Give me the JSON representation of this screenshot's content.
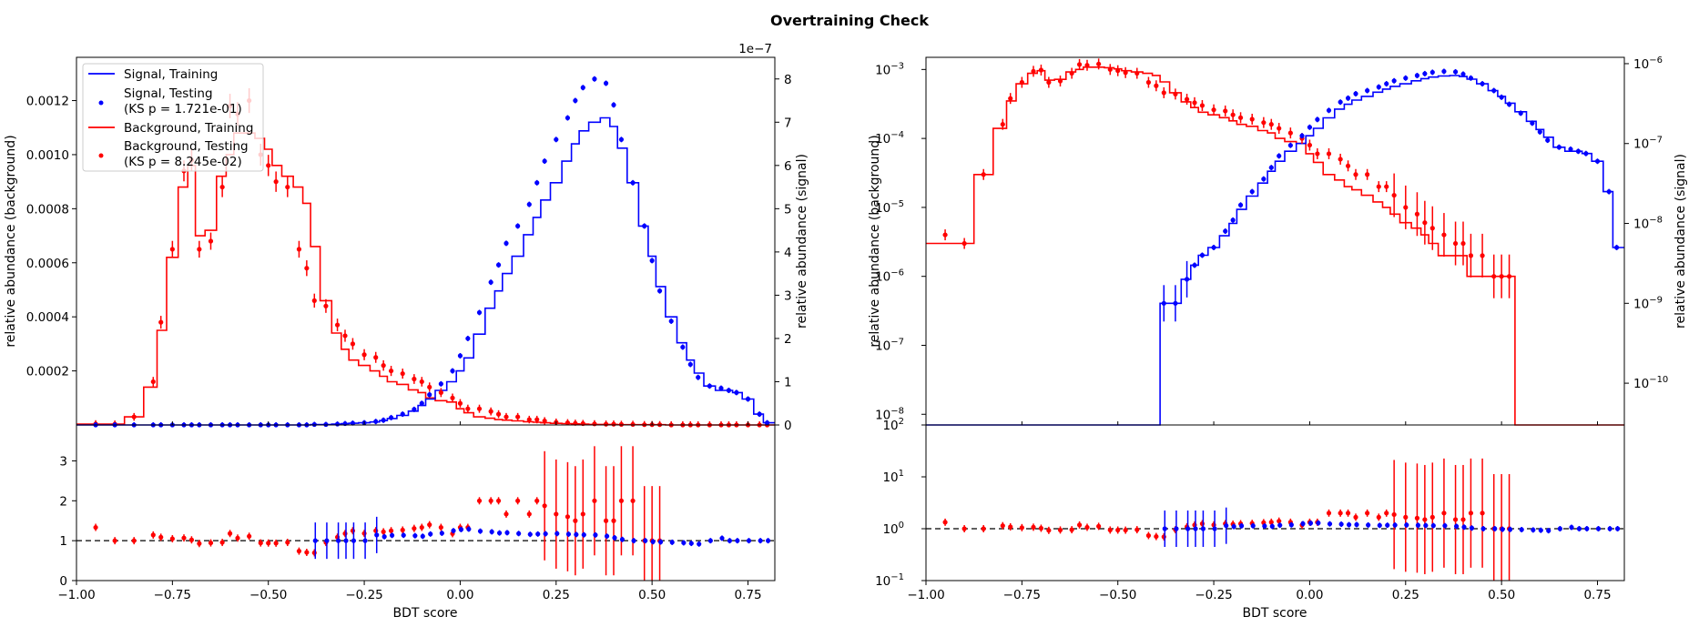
{
  "title": "Overtraining Check",
  "colors": {
    "signal": "#0000ff",
    "background": "#ff0000",
    "axis": "#000000",
    "ref_line": "#000000"
  },
  "panels": {
    "left": {
      "ylabel_left": "relative abundance (background)",
      "ylabel_right": "relative abundance (signal)",
      "offset_label": "1e−7",
      "xlabel": "BDT score",
      "yticks_left": [
        "0.0002",
        "0.0004",
        "0.0006",
        "0.0008",
        "0.0010",
        "0.0012"
      ],
      "yticks_right": [
        "0",
        "1",
        "2",
        "3",
        "4",
        "5",
        "6",
        "7",
        "8"
      ],
      "ratio_yticks": [
        "0",
        "1",
        "2",
        "3"
      ],
      "xticks": [
        "−1.00",
        "−0.75",
        "−0.50",
        "−0.25",
        "0.00",
        "0.25",
        "0.50",
        "0.75"
      ]
    },
    "right": {
      "ylabel_left": "relative abundance (background)",
      "ylabel_right": "relative abundance (signal)",
      "xlabel": "BDT score",
      "yticks_left": [
        "10",
        "10",
        "10",
        "10",
        "10",
        "10"
      ],
      "yticks_left_exp": [
        "−8",
        "−7",
        "−6",
        "−5",
        "−4",
        "−3"
      ],
      "yticks_right": [
        "10",
        "10",
        "10",
        "10",
        "10"
      ],
      "yticks_right_exp": [
        "−10",
        "−9",
        "−8",
        "−7",
        "−6"
      ],
      "ratio_yticks": [
        "10",
        "10",
        "10",
        "10"
      ],
      "ratio_yticks_exp": [
        "−1",
        "0",
        "1",
        "2"
      ],
      "xticks": [
        "−1.00",
        "−0.75",
        "−0.50",
        "−0.25",
        "0.00",
        "0.25",
        "0.50",
        "0.75"
      ]
    }
  },
  "legend": [
    {
      "label": "Signal, Training",
      "kind": "line",
      "color": "#0000ff"
    },
    {
      "label": "Signal, Testing",
      "sub": "(KS p = 1.721e-01)",
      "kind": "marker",
      "color": "#0000ff"
    },
    {
      "label": "Background, Training",
      "kind": "line",
      "color": "#ff0000"
    },
    {
      "label": "Background, Testing",
      "sub": "(KS p = 8.245e-02)",
      "kind": "marker",
      "color": "#ff0000"
    }
  ],
  "chart_data": {
    "type": "line",
    "title": "Overtraining Check",
    "xlabel": "BDT score",
    "xlim": [
      -1.0,
      0.82
    ],
    "x": [
      -0.95,
      -0.9,
      -0.85,
      -0.8,
      -0.78,
      -0.75,
      -0.72,
      -0.7,
      -0.68,
      -0.65,
      -0.62,
      -0.6,
      -0.58,
      -0.55,
      -0.52,
      -0.5,
      -0.48,
      -0.45,
      -0.42,
      -0.4,
      -0.38,
      -0.35,
      -0.32,
      -0.3,
      -0.28,
      -0.25,
      -0.22,
      -0.2,
      -0.18,
      -0.15,
      -0.12,
      -0.1,
      -0.08,
      -0.05,
      -0.02,
      0.0,
      0.02,
      0.05,
      0.08,
      0.1,
      0.12,
      0.15,
      0.18,
      0.2,
      0.22,
      0.25,
      0.28,
      0.3,
      0.32,
      0.35,
      0.38,
      0.4,
      0.42,
      0.45,
      0.48,
      0.5,
      0.52,
      0.55,
      0.58,
      0.6,
      0.62,
      0.65,
      0.68,
      0.7,
      0.72,
      0.75,
      0.78,
      0.8
    ],
    "series": [
      {
        "name": "Signal, Training",
        "axis": "signal (×1e−7)",
        "values": [
          0,
          0,
          0,
          0,
          0,
          0,
          0,
          0,
          0,
          0,
          0,
          0,
          0,
          0,
          0,
          0,
          0,
          0,
          0,
          0,
          0.01,
          0.01,
          0.02,
          0.03,
          0.04,
          0.05,
          0.07,
          0.1,
          0.15,
          0.22,
          0.32,
          0.45,
          0.6,
          0.8,
          1.0,
          1.25,
          1.55,
          2.1,
          2.7,
          3.1,
          3.5,
          3.9,
          4.4,
          4.8,
          5.2,
          5.6,
          6.1,
          6.5,
          6.8,
          7.0,
          7.1,
          6.9,
          6.4,
          5.6,
          4.6,
          3.9,
          3.2,
          2.5,
          1.9,
          1.5,
          1.2,
          0.9,
          0.8,
          0.8,
          0.75,
          0.6,
          0.25,
          0.05
        ]
      },
      {
        "name": "Signal, Testing",
        "axis": "signal (×1e−7)",
        "values": [
          0,
          0,
          0,
          0,
          0,
          0,
          0,
          0,
          0,
          0,
          0,
          0,
          0,
          0,
          0,
          0,
          0,
          0,
          0,
          0,
          0.01,
          0.01,
          0.02,
          0.03,
          0.04,
          0.05,
          0.08,
          0.11,
          0.17,
          0.25,
          0.36,
          0.5,
          0.7,
          0.95,
          1.25,
          1.6,
          2.0,
          2.6,
          3.3,
          3.7,
          4.2,
          4.6,
          5.1,
          5.6,
          6.1,
          6.6,
          7.1,
          7.5,
          7.8,
          8.0,
          7.9,
          7.4,
          6.6,
          5.6,
          4.6,
          3.8,
          3.1,
          2.4,
          1.8,
          1.4,
          1.1,
          0.9,
          0.85,
          0.8,
          0.75,
          0.6,
          0.25,
          0.05
        ]
      },
      {
        "name": "Background, Training",
        "axis": "background",
        "values": [
          3e-06,
          3e-06,
          3e-05,
          0.00014,
          0.00035,
          0.00062,
          0.00088,
          0.00096,
          0.0007,
          0.00072,
          0.00092,
          0.001,
          0.00108,
          0.00108,
          0.00106,
          0.00102,
          0.00096,
          0.00092,
          0.00088,
          0.00082,
          0.00066,
          0.00046,
          0.00034,
          0.00028,
          0.00024,
          0.00022,
          0.0002,
          0.00018,
          0.00016,
          0.00015,
          0.00013,
          0.00012,
          0.0001,
          9e-05,
          8.5e-05,
          6e-05,
          4.5e-05,
          3e-05,
          2.5e-05,
          2e-05,
          1.8e-05,
          1.5e-05,
          1.2e-05,
          1e-05,
          8e-06,
          6e-06,
          5e-06,
          4e-06,
          3e-06,
          2e-06,
          2e-06,
          2e-06,
          1e-06,
          1e-06,
          1e-06,
          1e-06,
          1e-06,
          0,
          0,
          0,
          0,
          0,
          0,
          0,
          0,
          0,
          0,
          0
        ]
      },
      {
        "name": "Background, Testing",
        "axis": "background",
        "values": [
          4e-06,
          3e-06,
          3e-05,
          0.00016,
          0.00038,
          0.00065,
          0.00094,
          0.00098,
          0.00065,
          0.00068,
          0.00088,
          0.00118,
          0.00115,
          0.0012,
          0.001,
          0.00096,
          0.0009,
          0.00088,
          0.00065,
          0.00058,
          0.00046,
          0.00044,
          0.00037,
          0.00033,
          0.0003,
          0.00026,
          0.00025,
          0.00022,
          0.0002,
          0.00019,
          0.00017,
          0.00016,
          0.00014,
          0.00012,
          0.0001,
          8e-05,
          6e-05,
          6e-05,
          5e-05,
          4e-05,
          3e-05,
          3e-05,
          2e-05,
          2e-05,
          1.5e-05,
          1e-05,
          8e-06,
          6e-06,
          5e-06,
          4e-06,
          3e-06,
          3e-06,
          2e-06,
          2e-06,
          1e-06,
          1e-06,
          1e-06,
          0,
          0,
          0,
          0,
          0,
          0,
          0,
          0,
          0,
          0,
          0
        ]
      }
    ],
    "ratio_reference": 1,
    "ylim_background": [
      0,
      0.00136
    ],
    "ylim_signal_1e-7": [
      0,
      8.5
    ],
    "ratio_ylim_linear": [
      0,
      3.9
    ],
    "ratio_ylim_log": [
      0.1,
      100
    ],
    "log_ylim_background": [
      7e-09,
      0.0015
    ],
    "log_ylim_signal": [
      3e-11,
      1.2e-06
    ],
    "legend_position": "upper-left",
    "grid": false
  }
}
